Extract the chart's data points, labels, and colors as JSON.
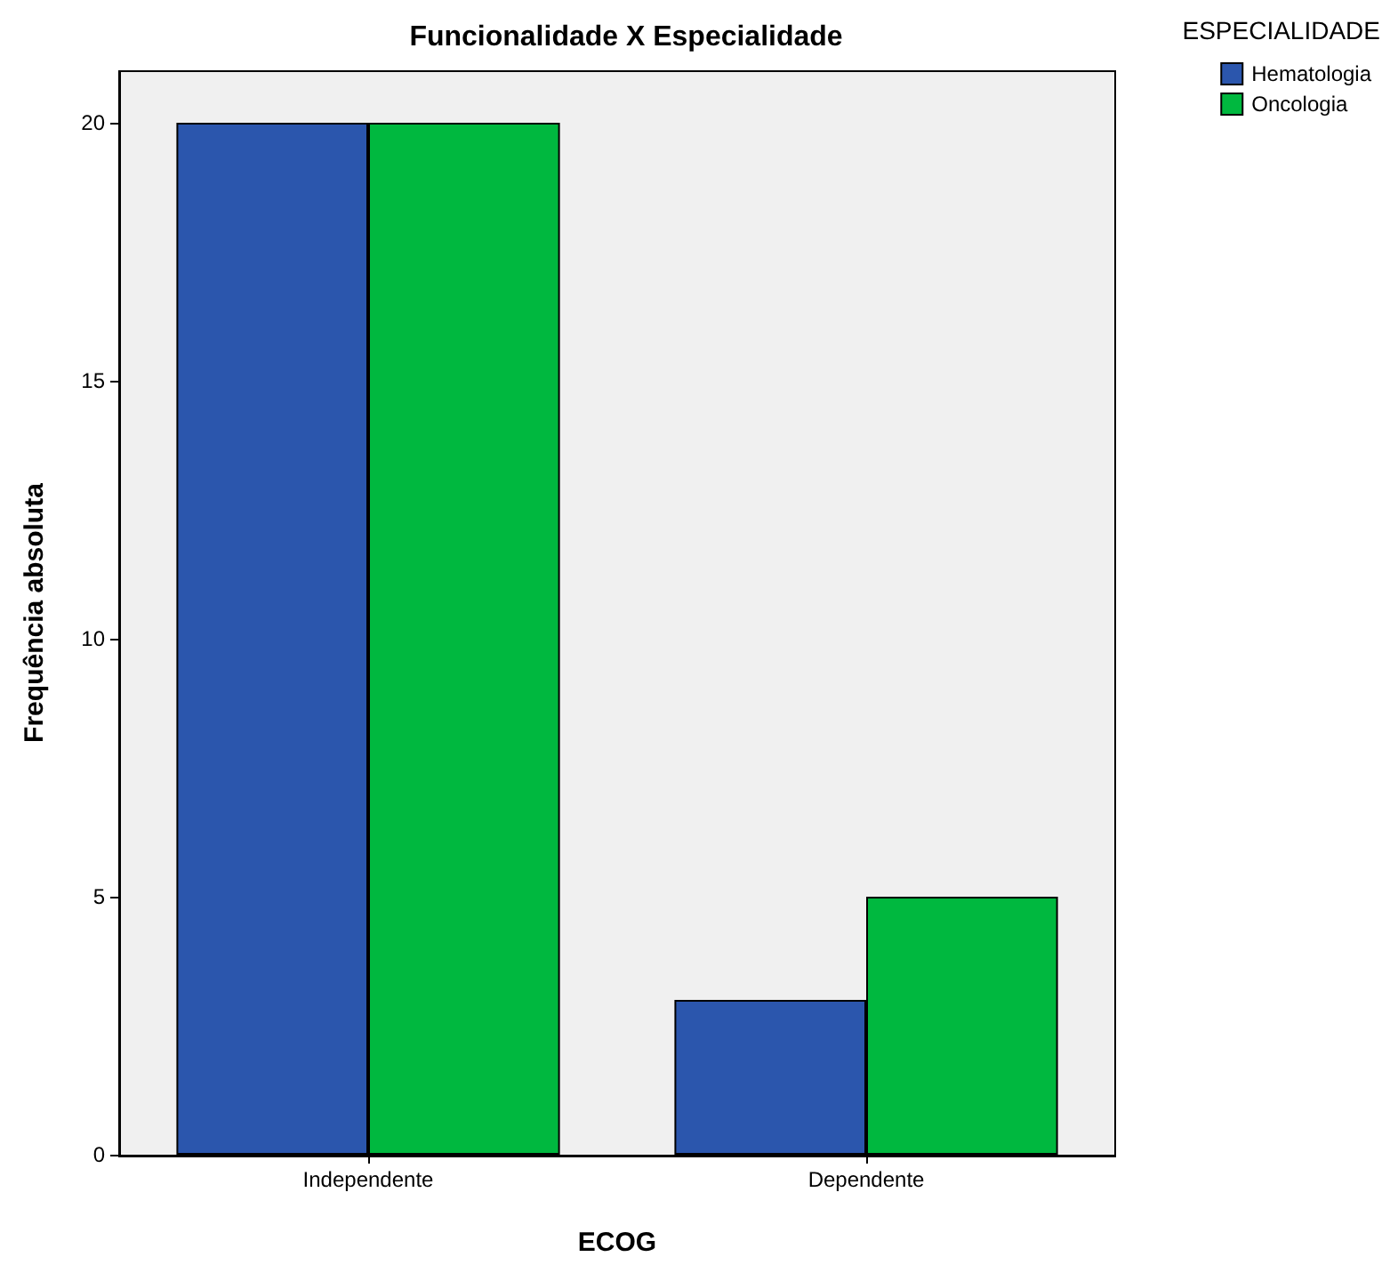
{
  "chart_data": {
    "type": "bar",
    "title": "Funcionalidade X Especialidade",
    "xlabel": "ECOG",
    "ylabel": "Frequência absoluta",
    "legend_title": "ESPECIALIDADE",
    "categories": [
      "Independente",
      "Dependente"
    ],
    "series": [
      {
        "name": "Hematologia",
        "color": "#2b56ad",
        "values": [
          20,
          3
        ]
      },
      {
        "name": "Oncologia",
        "color": "#00b83f",
        "values": [
          20,
          5
        ]
      }
    ],
    "ylim": [
      0,
      21
    ],
    "yticks": [
      0,
      5,
      10,
      15,
      20
    ],
    "grid": false,
    "legend": "top right"
  }
}
